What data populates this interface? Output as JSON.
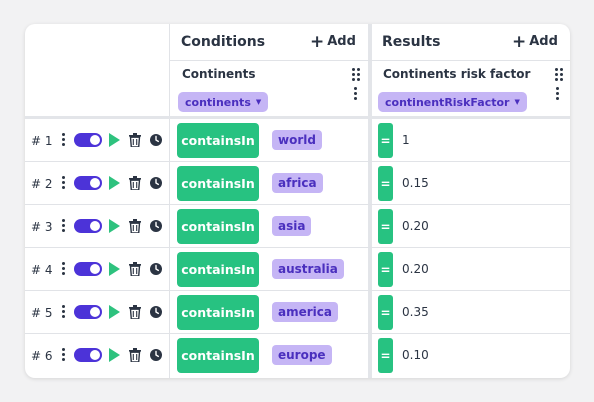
{
  "conditions": {
    "title": "Conditions",
    "add_label": "Add",
    "column": {
      "name": "Continents",
      "type": "continents"
    }
  },
  "results": {
    "title": "Results",
    "add_label": "Add",
    "column": {
      "name": "Continents risk factor",
      "type": "continentRiskFactor"
    }
  },
  "colors": {
    "accent": "#4c33d8",
    "operator": "#27c281",
    "value_chip_bg": "#c5b5f5",
    "value_chip_text": "#4a2fbe"
  },
  "rows": [
    {
      "num": "# 1",
      "operator": "containsIn",
      "value": "world",
      "result_op": "=",
      "result": "1"
    },
    {
      "num": "# 2",
      "operator": "containsIn",
      "value": "africa",
      "result_op": "=",
      "result": "0.15"
    },
    {
      "num": "# 3",
      "operator": "containsIn",
      "value": "asia",
      "result_op": "=",
      "result": "0.20"
    },
    {
      "num": "# 4",
      "operator": "containsIn",
      "value": "australia",
      "result_op": "=",
      "result": "0.20"
    },
    {
      "num": "# 5",
      "operator": "containsIn",
      "value": "america",
      "result_op": "=",
      "result": "0.35"
    },
    {
      "num": "# 6",
      "operator": "containsIn",
      "value": "europe",
      "result_op": "=",
      "result": "0.10"
    }
  ],
  "icons": {
    "row_menu": "kebab-icon",
    "enable": "toggle",
    "run": "play-icon",
    "delete": "trash-icon",
    "history": "clock-icon",
    "column_drag": "grip-icon"
  }
}
